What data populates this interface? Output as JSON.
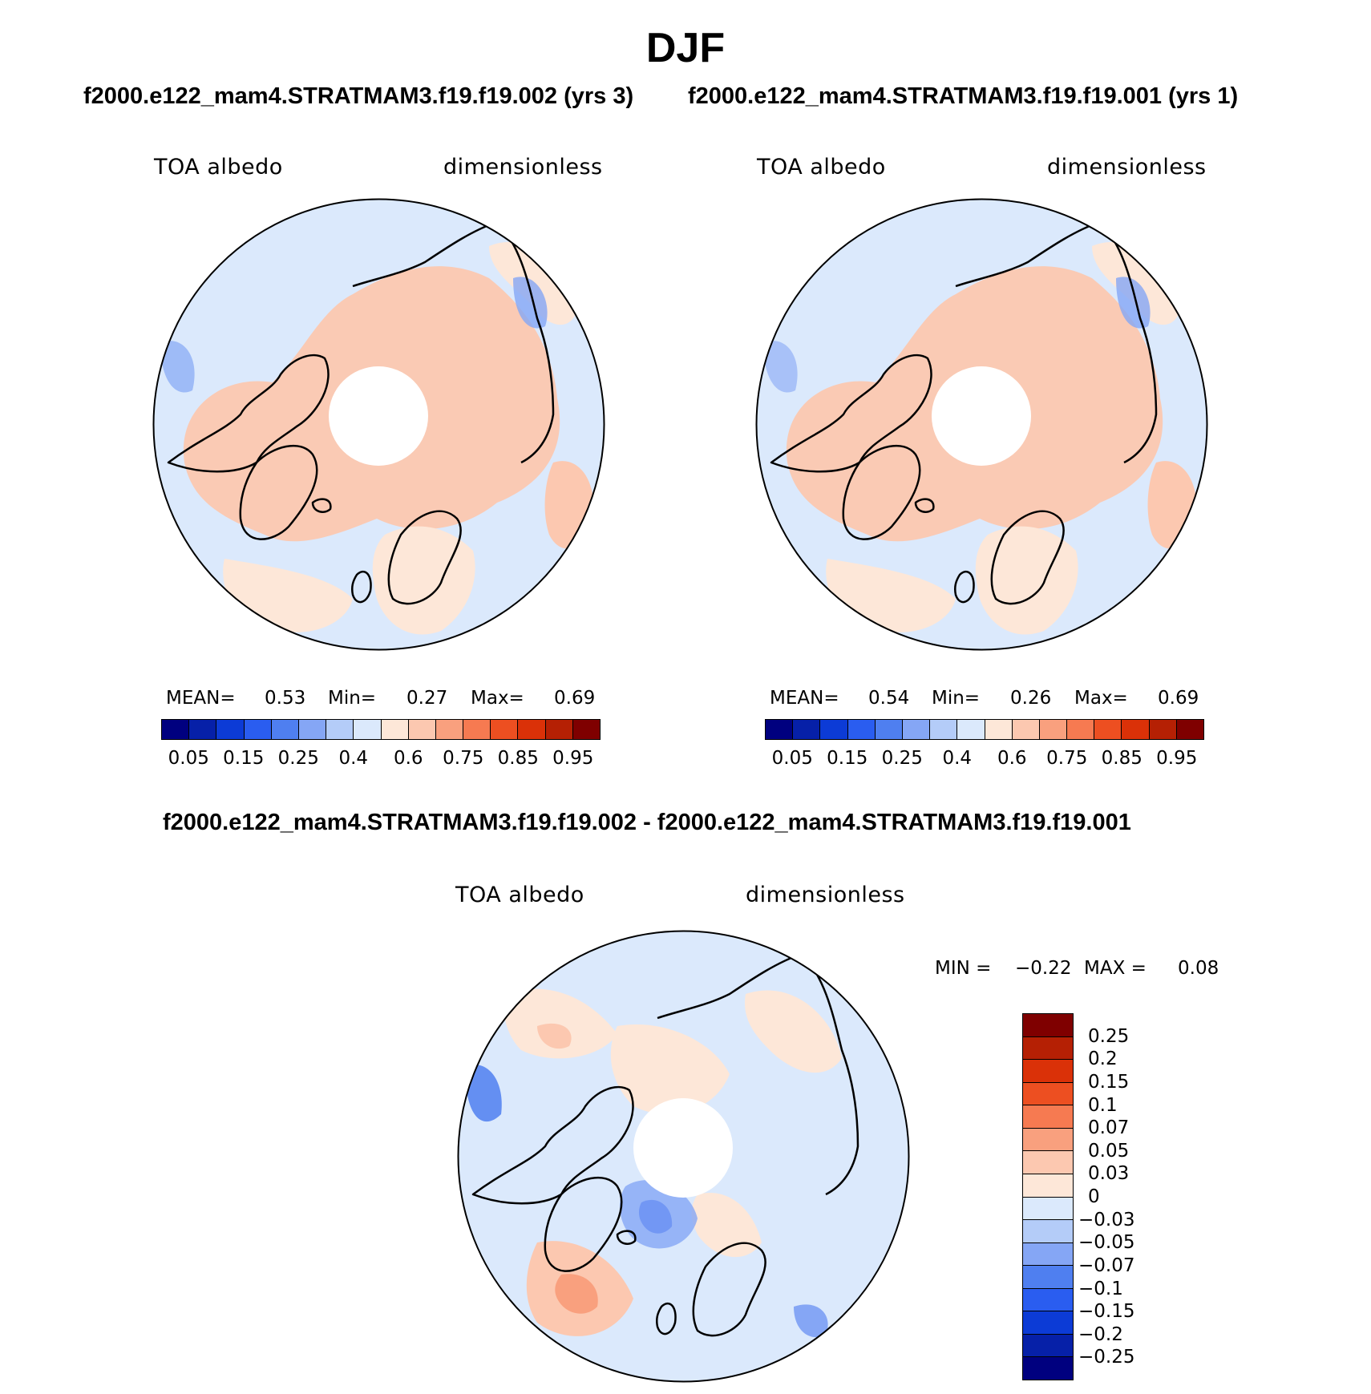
{
  "figure": {
    "season": "DJF",
    "case1_title": "f2000.e122_mam4.STRATMAM3.f19.f19.002 (yrs 3)",
    "case2_title": "f2000.e122_mam4.STRATMAM3.f19.f19.001 (yrs 1)",
    "diff_title": "f2000.e122_mam4.STRATMAM3.f19.f19.002 - f2000.e122_mam4.STRATMAM3.f19.f19.001"
  },
  "panels": [
    {
      "variable": "TOA albedo",
      "units": "dimensionless",
      "mean_label": "MEAN=",
      "mean": "0.53",
      "min_label": "Min=",
      "min": "0.27",
      "max_label": "Max=",
      "max": "0.69"
    },
    {
      "variable": "TOA albedo",
      "units": "dimensionless",
      "mean_label": "MEAN=",
      "mean": "0.54",
      "min_label": "Min=",
      "min": "0.26",
      "max_label": "Max=",
      "max": "0.69"
    }
  ],
  "diff_panel": {
    "variable": "TOA albedo",
    "units": "dimensionless",
    "min_label": "MIN =",
    "min": "−0.22",
    "max_label": "MAX =",
    "max": "0.08"
  },
  "colorbar_levels": [
    "0.05",
    "0.15",
    "0.25",
    "0.4",
    "0.6",
    "0.75",
    "0.85",
    "0.95"
  ],
  "colorbar_colors": [
    "#00007f",
    "#0620a8",
    "#0c3bd6",
    "#2a5df0",
    "#4f7ff0",
    "#85a6f5",
    "#b4ccf8",
    "#dbe9fc",
    "#fde7d8",
    "#fcc8b0",
    "#f9a07e",
    "#f67a51",
    "#ed4f21",
    "#da3108",
    "#b52004",
    "#7f0000"
  ],
  "diff_colorbar_levels": [
    "0.25",
    "0.2",
    "0.15",
    "0.1",
    "0.07",
    "0.05",
    "0.03",
    "0",
    "−0.03",
    "−0.05",
    "−0.07",
    "−0.1",
    "−0.15",
    "−0.2",
    "−0.25"
  ],
  "diff_colorbar_colors": [
    "#7f0000",
    "#b52004",
    "#da3108",
    "#ed4f21",
    "#f67a51",
    "#f9a07e",
    "#fcc8b0",
    "#fde7d8",
    "#dbe9fc",
    "#b4ccf8",
    "#85a6f5",
    "#4f7ff0",
    "#2a5df0",
    "#0c3bd6",
    "#0620a8",
    "#00007f"
  ]
}
